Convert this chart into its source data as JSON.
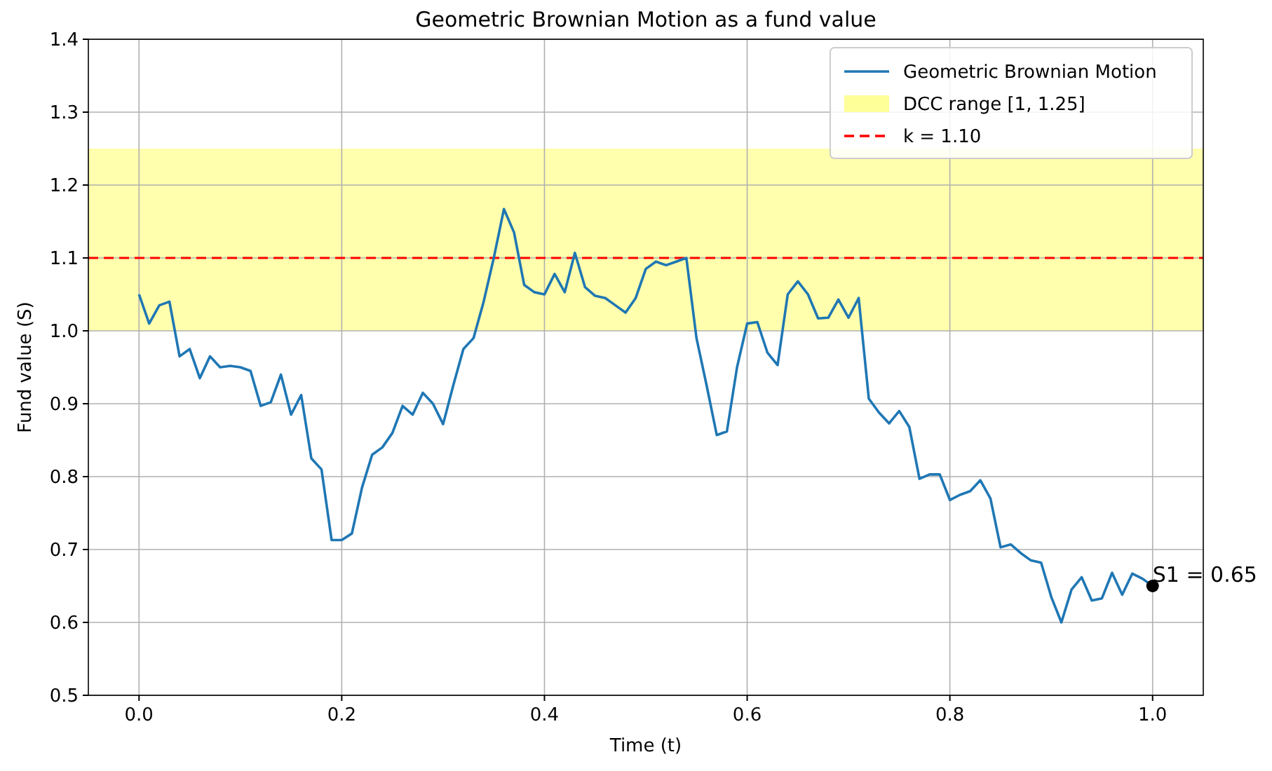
{
  "chart_data": {
    "type": "line",
    "title": "Geometric Brownian Motion as a fund value",
    "xlabel": "Time (t)",
    "ylabel": "Fund value (S)",
    "xlim": [
      -0.05,
      1.05
    ],
    "xticks": [
      {
        "value": 0,
        "label": "0.0"
      },
      0.2,
      0.4,
      0.6,
      0.8,
      {
        "value": 1,
        "label": "1.0"
      }
    ],
    "ylim": [
      0.5,
      1.4
    ],
    "yticks": [
      0.5,
      0.6,
      0.7,
      0.8,
      0.9,
      {
        "value": 1,
        "label": "1.0"
      },
      1.1,
      1.2,
      1.3,
      1.4
    ],
    "grid": true,
    "legend": "top right",
    "series": [
      {
        "name": "Geometric Brownian Motion",
        "color": "#1f77b4",
        "x": [
          0,
          0.01,
          0.02,
          0.03,
          0.04,
          0.05,
          0.06,
          0.07,
          0.08,
          0.09,
          0.1,
          0.11,
          0.12,
          0.13,
          0.14,
          0.15,
          0.16,
          0.17,
          0.18,
          0.19,
          0.2,
          0.21,
          0.22,
          0.23,
          0.24,
          0.25,
          0.26,
          0.27,
          0.28,
          0.29,
          0.3,
          0.31,
          0.32,
          0.33,
          0.34,
          0.35,
          0.36,
          0.37,
          0.38,
          0.39,
          0.4,
          0.41,
          0.42,
          0.43,
          0.44,
          0.45,
          0.46,
          0.47,
          0.48,
          0.49,
          0.5,
          0.51,
          0.52,
          0.53,
          0.54,
          0.55,
          0.56,
          0.57,
          0.58,
          0.59,
          0.6,
          0.61,
          0.62,
          0.63,
          0.64,
          0.65,
          0.66,
          0.67,
          0.68,
          0.69,
          0.7,
          0.71,
          0.72,
          0.73,
          0.74,
          0.75,
          0.76,
          0.77,
          0.78,
          0.79,
          0.8,
          0.81,
          0.82,
          0.83,
          0.84,
          0.85,
          0.86,
          0.87,
          0.88,
          0.89,
          0.9,
          0.91,
          0.92,
          0.93,
          0.94,
          0.95,
          0.96,
          0.97,
          0.98,
          0.99,
          1
        ],
        "values": [
          1.05,
          1.01,
          1.035,
          1.04,
          0.965,
          0.975,
          0.935,
          0.965,
          0.95,
          0.952,
          0.95,
          0.945,
          0.897,
          0.902,
          0.94,
          0.885,
          0.912,
          0.825,
          0.81,
          0.713,
          0.713,
          0.722,
          0.785,
          0.83,
          0.84,
          0.86,
          0.897,
          0.885,
          0.915,
          0.9,
          0.872,
          0.925,
          0.975,
          0.99,
          1.04,
          1.1,
          1.167,
          1.135,
          1.063,
          1.053,
          1.05,
          1.078,
          1.053,
          1.107,
          1.06,
          1.048,
          1.045,
          1.035,
          1.025,
          1.045,
          1.085,
          1.095,
          1.09,
          1.095,
          1.1,
          0.99,
          0.925,
          0.857,
          0.862,
          0.95,
          1.01,
          1.012,
          0.97,
          0.953,
          1.05,
          1.068,
          1.05,
          1.017,
          1.018,
          1.043,
          1.018,
          1.045,
          0.907,
          0.888,
          0.873,
          0.89,
          0.868,
          0.797,
          0.803,
          0.803,
          0.768,
          0.775,
          0.78,
          0.795,
          0.77,
          0.703,
          0.707,
          0.695,
          0.685,
          0.682,
          0.635,
          0.6,
          0.645,
          0.662,
          0.63,
          0.633,
          0.668,
          0.638,
          0.667,
          0.66,
          0.65
        ]
      },
      {
        "type": "scatter",
        "color": "#000000",
        "x": [
          1
        ],
        "values": [
          0.65
        ],
        "marker": "circle"
      }
    ],
    "bands": [
      {
        "axis": "y",
        "from": 1,
        "to": 1.25,
        "label": "DCC range [1, 1.25]",
        "color": "#ffff99"
      }
    ],
    "ref_lines": [
      {
        "axis": "y",
        "value": 1.1,
        "label": "k = 1.10",
        "color": "#ff0000",
        "line_style": "dashed"
      }
    ],
    "annotations": [
      {
        "text": "S1 = 0.65",
        "x": 1,
        "y": 0.65
      }
    ]
  }
}
